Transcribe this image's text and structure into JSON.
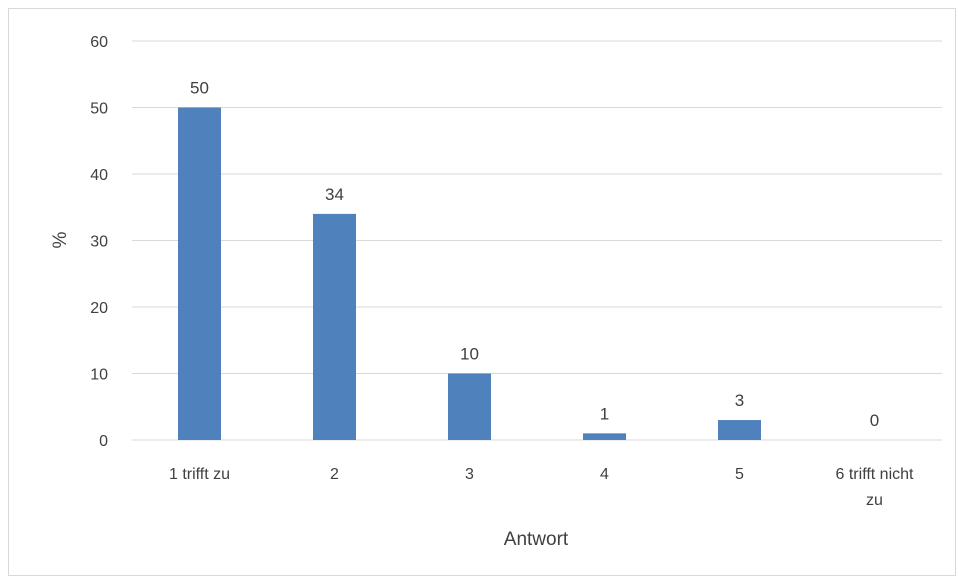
{
  "chart_data": {
    "type": "bar",
    "categories": [
      "1 trifft zu",
      "2",
      "3",
      "4",
      "5",
      "6 trifft nicht zu"
    ],
    "category_label_lines": [
      [
        "1 trifft zu"
      ],
      [
        "2"
      ],
      [
        "3"
      ],
      [
        "4"
      ],
      [
        "5"
      ],
      [
        "6 trifft nicht",
        "zu"
      ]
    ],
    "values": [
      50,
      34,
      10,
      1,
      3,
      0
    ],
    "data_labels": [
      "50",
      "34",
      "10",
      "1",
      "3",
      "0"
    ],
    "xlabel": "Antwort",
    "ylabel": "%",
    "ylim": [
      0,
      60
    ],
    "yticks": [
      0,
      10,
      20,
      30,
      40,
      50,
      60
    ],
    "grid": true,
    "legend": "none",
    "bar_color": "#4f81bd",
    "grid_color": "#d9d9d9",
    "text_color": "#404040"
  }
}
